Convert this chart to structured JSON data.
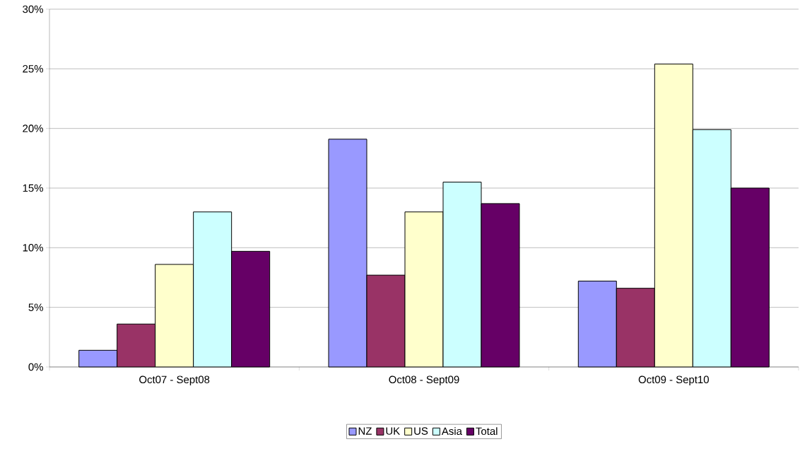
{
  "chart_data": {
    "type": "bar",
    "categories": [
      "Oct07 - Sept08",
      "Oct08 - Sept09",
      "Oct09 - Sept10"
    ],
    "series": [
      {
        "name": "NZ",
        "color": "#9999ff",
        "values": [
          1.4,
          19.1,
          7.2
        ]
      },
      {
        "name": "UK",
        "color": "#993366",
        "values": [
          3.6,
          7.7,
          6.6
        ]
      },
      {
        "name": "US",
        "color": "#ffffcc",
        "values": [
          8.6,
          13.0,
          25.4
        ]
      },
      {
        "name": "Asia",
        "color": "#ccffff",
        "values": [
          13.0,
          15.5,
          19.9
        ]
      },
      {
        "name": "Total",
        "color": "#660066",
        "values": [
          9.7,
          13.7,
          15.0
        ]
      }
    ],
    "ylim": [
      0,
      30
    ],
    "yticks": [
      {
        "value": 0,
        "label": "0%"
      },
      {
        "value": 5,
        "label": "5%"
      },
      {
        "value": 10,
        "label": "10%"
      },
      {
        "value": 15,
        "label": "15%"
      },
      {
        "value": 20,
        "label": "20%"
      },
      {
        "value": 25,
        "label": "25%"
      },
      {
        "value": 30,
        "label": "30%"
      }
    ],
    "grid": "y",
    "legend": "bottom"
  }
}
